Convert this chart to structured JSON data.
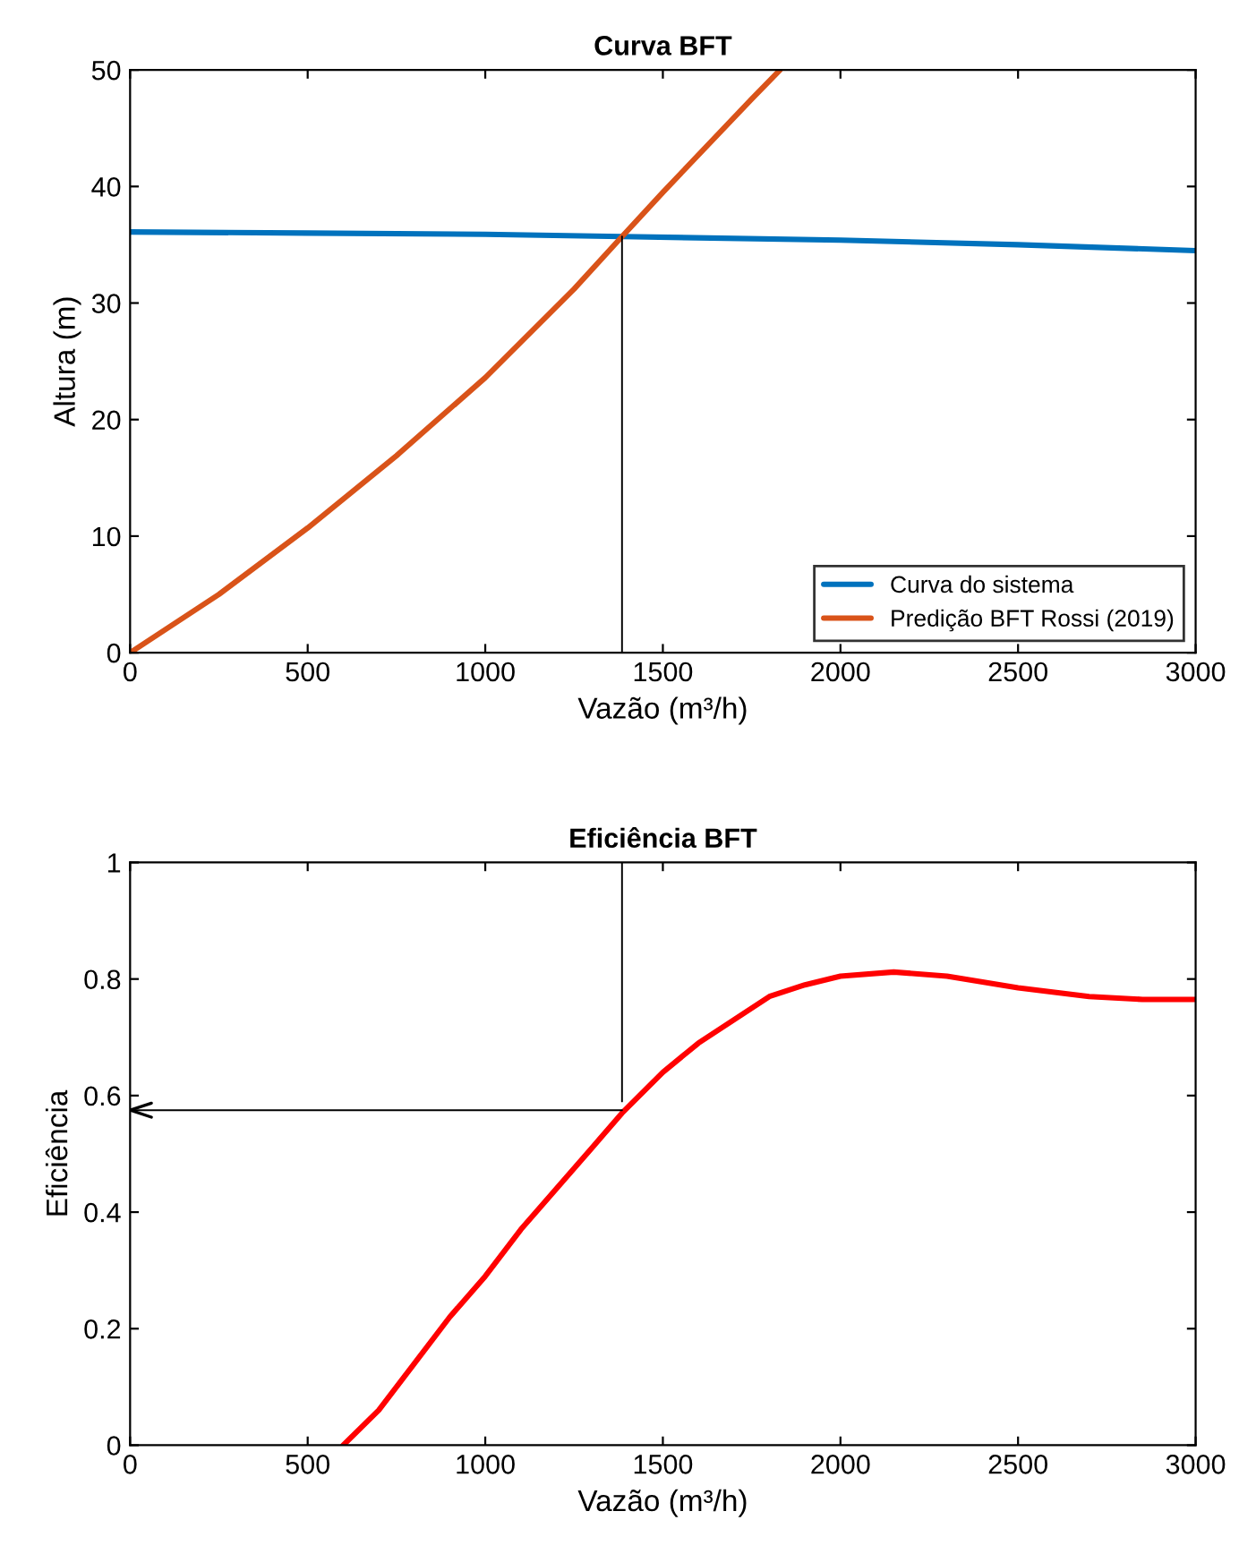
{
  "chart_data": [
    {
      "type": "line",
      "title": "Curva BFT",
      "xlabel": "Vazão (m³/h)",
      "ylabel": "Altura (m)",
      "xlim": [
        0,
        3000
      ],
      "ylim": [
        0,
        50
      ],
      "xticks": [
        0,
        500,
        1000,
        1500,
        2000,
        2500,
        3000
      ],
      "yticks": [
        0,
        10,
        20,
        30,
        40,
        50
      ],
      "legend": "bottom right",
      "grid": false,
      "series": [
        {
          "name": "Curva do sistema",
          "color": "#0072bd",
          "x": [
            0,
            500,
            1000,
            1385,
            2000,
            2500,
            3000
          ],
          "values": [
            36.1,
            36.0,
            35.9,
            35.7,
            35.4,
            35.0,
            34.5
          ]
        },
        {
          "name": "Predição BFT Rossi (2019)",
          "color": "#d95319",
          "x": [
            0,
            250,
            500,
            750,
            1000,
            1250,
            1385,
            1500,
            1750,
            1830
          ],
          "values": [
            0,
            5,
            10.7,
            16.9,
            23.6,
            31.2,
            35.7,
            39.5,
            47.5,
            50
          ]
        },
        {
          "color": "#000000",
          "x": [
            1385,
            1385
          ],
          "values": [
            35.7,
            0
          ]
        }
      ]
    },
    {
      "type": "line",
      "title": "Eficiência BFT",
      "xlabel": "Vazão (m³/h)",
      "ylabel": "Eficiência",
      "xlim": [
        0,
        3000
      ],
      "ylim": [
        0,
        1
      ],
      "xticks": [
        0,
        500,
        1000,
        1500,
        2000,
        2500,
        3000
      ],
      "yticks": [
        0,
        0.2,
        0.4,
        0.6,
        0.8,
        1
      ],
      "grid": false,
      "series": [
        {
          "color": "#ff0000",
          "x": [
            600,
            700,
            800,
            900,
            1000,
            1100,
            1200,
            1300,
            1385,
            1500,
            1600,
            1700,
            1800,
            1900,
            2000,
            2150,
            2300,
            2500,
            2700,
            2850,
            3000
          ],
          "values": [
            0,
            0.06,
            0.14,
            0.22,
            0.29,
            0.37,
            0.44,
            0.51,
            0.57,
            0.64,
            0.69,
            0.73,
            0.77,
            0.79,
            0.805,
            0.812,
            0.805,
            0.785,
            0.77,
            0.765,
            0.765
          ]
        },
        {
          "color": "#000000",
          "x": [
            1385,
            1385
          ],
          "values": [
            1,
            0.59
          ]
        },
        {
          "color": "#000000",
          "x": [
            1385,
            0
          ],
          "values": [
            0.575,
            0.575
          ]
        }
      ]
    }
  ]
}
